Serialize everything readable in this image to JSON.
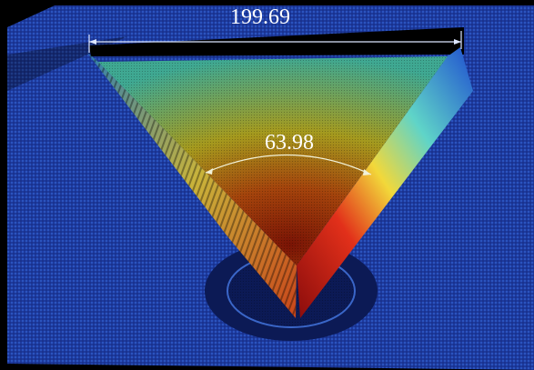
{
  "measurements": [
    {
      "label": "199.69"
    },
    {
      "label": "63.98"
    }
  ]
}
